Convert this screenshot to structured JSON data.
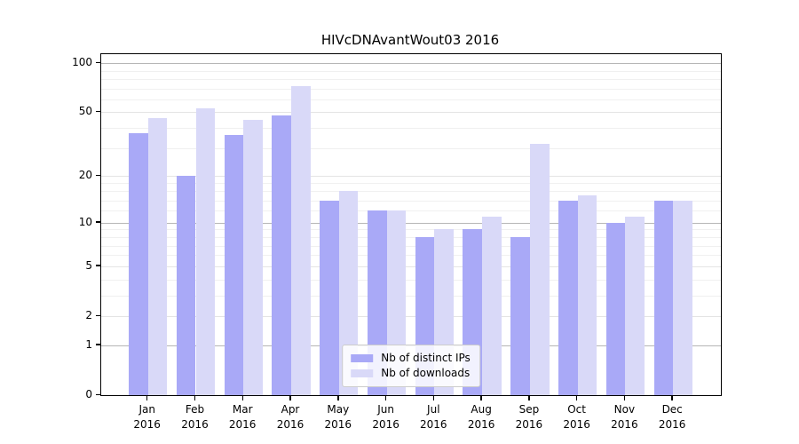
{
  "figure": {
    "title": "HIVcDNAvantWout03 2016"
  },
  "chart_data": {
    "type": "bar",
    "title": "HIVcDNAvantWout03 2016",
    "categories": [
      "Jan",
      "Feb",
      "Mar",
      "Apr",
      "May",
      "Jun",
      "Jul",
      "Aug",
      "Sep",
      "Oct",
      "Nov",
      "Dec"
    ],
    "year_label": "2016",
    "series": [
      {
        "name": "Nb of distinct IPs",
        "color": "#a9a9f7",
        "values": [
          37,
          20,
          36,
          48,
          14,
          12,
          8,
          9,
          8,
          14,
          10,
          14
        ]
      },
      {
        "name": "Nb of downloads",
        "color": "#d9d9f8",
        "values": [
          46,
          53,
          45,
          72,
          16,
          12,
          9,
          11,
          32,
          15,
          11,
          14
        ]
      }
    ],
    "y_scale": "log10(1+v)",
    "y_ticks": [
      0,
      1,
      2,
      5,
      10,
      20,
      50,
      100
    ],
    "y_minor_ticks": [
      3,
      4,
      6,
      7,
      8,
      9,
      12,
      14,
      16,
      18,
      30,
      40,
      60,
      70,
      80,
      90
    ],
    "ylim": [
      0,
      113
    ],
    "grid": true,
    "legend_position": "lower center",
    "colors": {
      "grid_pow10": "#b6b6b6",
      "grid_major": "#e4e4e4",
      "grid_minor": "#f0f0f0",
      "axis": "#000000",
      "background": "#ffffff",
      "text": "#000000"
    }
  }
}
